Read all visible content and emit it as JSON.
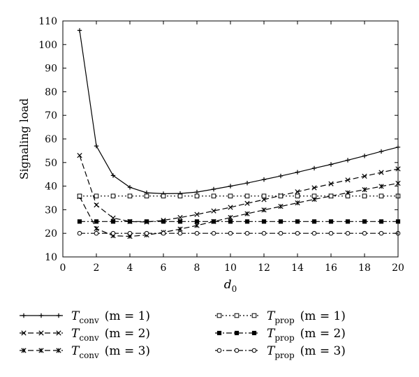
{
  "chart_data": {
    "type": "line",
    "xlabel": "d",
    "xlabel_sub": "0",
    "ylabel": "Signaling load",
    "xlim": [
      0,
      20
    ],
    "ylim": [
      10,
      110
    ],
    "xticks": [
      "0",
      "2",
      "4",
      "6",
      "8",
      "10",
      "12",
      "14",
      "16",
      "18",
      "20"
    ],
    "yticks": [
      "10",
      "20",
      "30",
      "40",
      "50",
      "60",
      "70",
      "80",
      "90",
      "100",
      "110"
    ],
    "grid": false,
    "legend_position": "bottom",
    "x": [
      1,
      2,
      3,
      4,
      5,
      6,
      7,
      8,
      9,
      10,
      11,
      12,
      13,
      14,
      15,
      16,
      17,
      18,
      19,
      20
    ],
    "series": [
      {
        "name": "T_conv (m = 1)",
        "label_main": "T",
        "label_sub": "conv",
        "label_params": "(m = 1)",
        "style": "solid",
        "marker": "plus",
        "values": [
          106,
          57,
          44.5,
          39.5,
          37.2,
          36.8,
          36.9,
          37.5,
          38.7,
          40,
          41.3,
          42.8,
          44.3,
          45.9,
          47.6,
          49.2,
          51,
          52.8,
          54.7,
          56.5
        ]
      },
      {
        "name": "T_conv (m = 2)",
        "label_main": "T",
        "label_sub": "conv",
        "label_params": "(m = 2)",
        "style": "dashed",
        "marker": "x",
        "values": [
          53,
          32,
          26.5,
          25,
          24.8,
          25.5,
          26.7,
          28,
          29.5,
          31,
          32.7,
          34.3,
          36,
          37.6,
          39.3,
          41,
          42.6,
          44.2,
          45.8,
          47.3
        ]
      },
      {
        "name": "T_conv (m = 3)",
        "label_main": "T",
        "label_sub": "conv",
        "label_params": "(m = 3)",
        "style": "dashed",
        "marker": "asterisk",
        "values": [
          35.5,
          22,
          19,
          18.7,
          19.3,
          20.4,
          21.8,
          23.3,
          25,
          26.7,
          28.3,
          29.9,
          31.4,
          32.9,
          34.4,
          35.8,
          37.2,
          38.5,
          39.9,
          41.2
        ]
      },
      {
        "name": "T_prop (m = 1)",
        "label_main": "T",
        "label_sub": "prop",
        "label_params": "(m = 1)",
        "style": "dotted",
        "marker": "square-open",
        "values": [
          35.8,
          35.8,
          35.8,
          35.8,
          35.8,
          35.8,
          35.8,
          35.8,
          35.8,
          35.8,
          35.8,
          35.8,
          35.8,
          35.8,
          35.8,
          35.8,
          35.8,
          35.8,
          35.8,
          35.8
        ]
      },
      {
        "name": "T_prop (m = 2)",
        "label_main": "T",
        "label_sub": "prop",
        "label_params": "(m = 2)",
        "style": "dashdot",
        "marker": "square-filled",
        "values": [
          25,
          25,
          25,
          25,
          25,
          25,
          25,
          25,
          25,
          25,
          25,
          25,
          25,
          25,
          25,
          25,
          25,
          25,
          25,
          25
        ]
      },
      {
        "name": "T_prop (m = 3)",
        "label_main": "T",
        "label_sub": "prop",
        "label_params": "(m = 3)",
        "style": "dashdot",
        "marker": "circle-open",
        "values": [
          20,
          20,
          20,
          20,
          20,
          20,
          20,
          20,
          20,
          20,
          20,
          20,
          20,
          20,
          20,
          20,
          20,
          20,
          20,
          20
        ]
      }
    ]
  }
}
